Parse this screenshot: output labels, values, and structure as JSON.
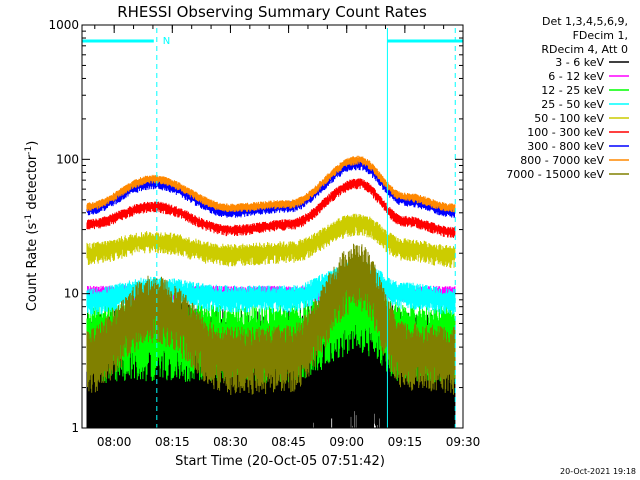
{
  "chart_data": {
    "type": "line",
    "title": "RHESSI Observing Summary Count Rates",
    "xlabel": "Start Time (20-Oct-05 07:51:42)",
    "ylabel": "Count Rate (s⁻¹ detector⁻¹)",
    "ylabel_parts": {
      "pre": "Count Rate (s",
      "sup1": "-1",
      "mid": " detector",
      "sup2": "-1",
      "post": ")"
    },
    "footer_date": "20-Oct-2021 19:18",
    "y_scale": "log",
    "ylim": [
      1,
      1000
    ],
    "xlim": [
      "07:51:42",
      "09:30:00"
    ],
    "x_ticks": [
      "08:00",
      "08:15",
      "08:30",
      "08:45",
      "09:00",
      "09:15",
      "09:30"
    ],
    "y_ticks": [
      "1",
      "10",
      "100",
      "1000"
    ],
    "grid": false,
    "legend_position": "right",
    "legend_header": [
      "Det 1,3,4,5,6,9,",
      "FDecim 1,",
      "RDecim 4, Att 0"
    ],
    "attenuator_marker": "N",
    "vertical_markers": [
      {
        "time": "08:11:00",
        "style": "dashed"
      },
      {
        "time": "09:10:30",
        "style": "solid"
      },
      {
        "time": "09:28:00",
        "style": "dashed"
      }
    ],
    "series": [
      {
        "name": "3 - 6 keV",
        "color": "#000000",
        "values": [
          {
            "time": "07:53",
            "rate": 1.7
          },
          {
            "time": "08:10",
            "rate": 2.2
          },
          {
            "time": "08:30",
            "rate": 1.8
          },
          {
            "time": "08:45",
            "rate": 1.9
          },
          {
            "time": "09:03",
            "rate": 2.8
          },
          {
            "time": "09:15",
            "rate": 1.9
          },
          {
            "time": "09:28",
            "rate": 1.7
          }
        ]
      },
      {
        "name": "6 - 12 keV",
        "color": "#ff00ff",
        "values": [
          {
            "time": "07:53",
            "rate": 10.2
          },
          {
            "time": "08:10",
            "rate": 10.5
          },
          {
            "time": "08:30",
            "rate": 10.2
          },
          {
            "time": "08:45",
            "rate": 10.2
          },
          {
            "time": "09:03",
            "rate": 10.8
          },
          {
            "time": "09:15",
            "rate": 10.2
          },
          {
            "time": "09:28",
            "rate": 10.2
          }
        ]
      },
      {
        "name": "12 - 25 keV",
        "color": "#00ff00",
        "values": [
          {
            "time": "07:53",
            "rate": 4.8
          },
          {
            "time": "08:10",
            "rate": 5.0
          },
          {
            "time": "08:30",
            "rate": 4.8
          },
          {
            "time": "08:45",
            "rate": 4.8
          },
          {
            "time": "09:03",
            "rate": 8.0
          },
          {
            "time": "09:15",
            "rate": 4.8
          },
          {
            "time": "09:28",
            "rate": 4.8
          }
        ]
      },
      {
        "name": "25 - 50 keV",
        "color": "#00ffff",
        "values": [
          {
            "time": "07:53",
            "rate": 9.0
          },
          {
            "time": "08:10",
            "rate": 11.0
          },
          {
            "time": "08:30",
            "rate": 9.5
          },
          {
            "time": "08:45",
            "rate": 9.5
          },
          {
            "time": "09:03",
            "rate": 14.5
          },
          {
            "time": "09:15",
            "rate": 10.0
          },
          {
            "time": "09:28",
            "rate": 9.0
          }
        ]
      },
      {
        "name": "50 - 100 keV",
        "color": "#cccc00",
        "values": [
          {
            "time": "07:53",
            "rate": 20.5
          },
          {
            "time": "08:10",
            "rate": 25.0
          },
          {
            "time": "08:30",
            "rate": 20.0
          },
          {
            "time": "08:45",
            "rate": 21.0
          },
          {
            "time": "09:03",
            "rate": 34.0
          },
          {
            "time": "09:15",
            "rate": 22.0
          },
          {
            "time": "09:28",
            "rate": 19.5
          }
        ]
      },
      {
        "name": "100 - 300 keV",
        "color": "#ff0000",
        "values": [
          {
            "time": "07:53",
            "rate": 33.0
          },
          {
            "time": "08:10",
            "rate": 45.0
          },
          {
            "time": "08:30",
            "rate": 30.0
          },
          {
            "time": "08:45",
            "rate": 33.0
          },
          {
            "time": "09:03",
            "rate": 67.0
          },
          {
            "time": "09:15",
            "rate": 35.0
          },
          {
            "time": "09:28",
            "rate": 29.0
          }
        ]
      },
      {
        "name": "300 - 800 keV",
        "color": "#0000ff",
        "values": [
          {
            "time": "07:53",
            "rate": 43.0
          },
          {
            "time": "08:10",
            "rate": 67.0
          },
          {
            "time": "08:30",
            "rate": 41.0
          },
          {
            "time": "08:45",
            "rate": 45.0
          },
          {
            "time": "09:03",
            "rate": 93.0
          },
          {
            "time": "09:15",
            "rate": 50.0
          },
          {
            "time": "09:28",
            "rate": 41.0
          }
        ]
      },
      {
        "name": "800 - 7000 keV",
        "color": "#ff8800",
        "values": [
          {
            "time": "07:53",
            "rate": 45.0
          },
          {
            "time": "08:10",
            "rate": 72.0
          },
          {
            "time": "08:30",
            "rate": 44.0
          },
          {
            "time": "08:45",
            "rate": 47.0
          },
          {
            "time": "09:03",
            "rate": 100.0
          },
          {
            "time": "09:15",
            "rate": 53.0
          },
          {
            "time": "09:28",
            "rate": 44.0
          }
        ]
      },
      {
        "name": "7000 - 15000 keV",
        "color": "#808000",
        "values": [
          {
            "time": "07:53",
            "rate": 3.5
          },
          {
            "time": "08:10",
            "rate": 8.5
          },
          {
            "time": "08:30",
            "rate": 3.5
          },
          {
            "time": "08:45",
            "rate": 3.6
          },
          {
            "time": "09:03",
            "rate": 15.0
          },
          {
            "time": "09:15",
            "rate": 3.8
          },
          {
            "time": "09:28",
            "rate": 3.5
          }
        ]
      }
    ]
  }
}
